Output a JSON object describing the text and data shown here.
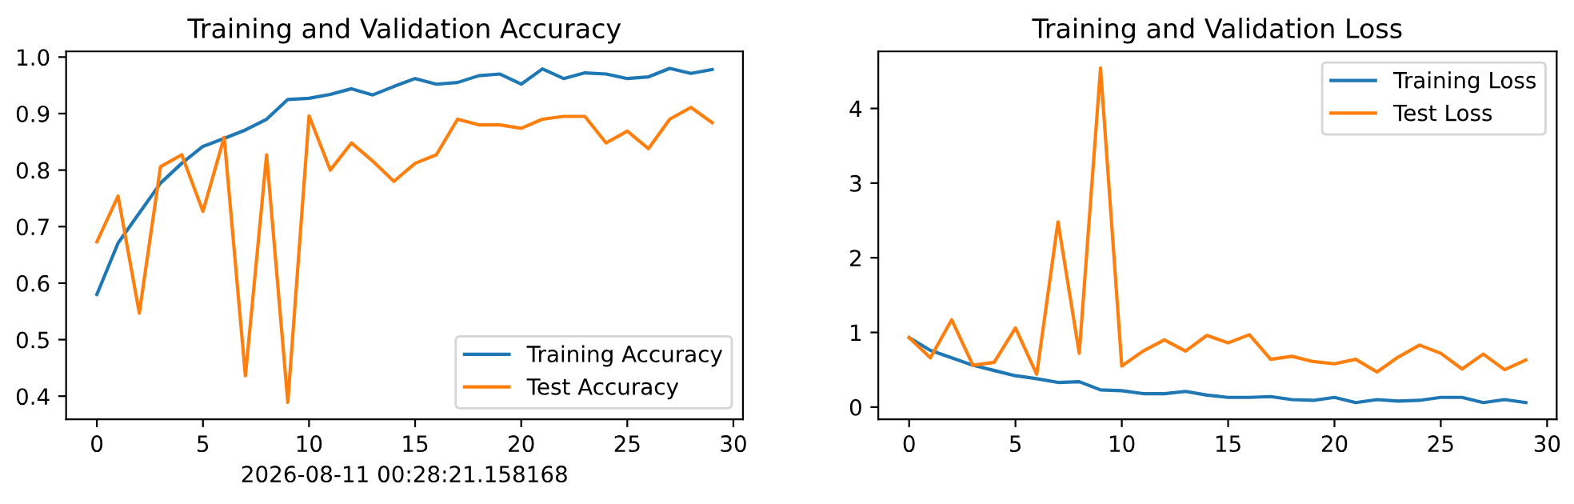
{
  "chart_data": [
    {
      "type": "line",
      "title": "Training and Validation Accuracy",
      "xlabel": "2026-08-11 00:28:21.158168",
      "x": [
        0,
        1,
        2,
        3,
        4,
        5,
        6,
        7,
        8,
        9,
        10,
        11,
        12,
        13,
        14,
        15,
        16,
        17,
        18,
        19,
        20,
        21,
        22,
        23,
        24,
        25,
        26,
        27,
        28,
        29
      ],
      "series": [
        {
          "name": "Training Accuracy",
          "color": "#1f77b4",
          "values": [
            0.58,
            0.671,
            0.724,
            0.777,
            0.812,
            0.842,
            0.856,
            0.871,
            0.89,
            0.925,
            0.927,
            0.934,
            0.944,
            0.933,
            0.948,
            0.962,
            0.952,
            0.955,
            0.967,
            0.97,
            0.952,
            0.979,
            0.962,
            0.972,
            0.97,
            0.962,
            0.965,
            0.98,
            0.971,
            0.978
          ]
        },
        {
          "name": "Test Accuracy",
          "color": "#ff7f0e",
          "values": [
            0.673,
            0.754,
            0.547,
            0.806,
            0.827,
            0.727,
            0.858,
            0.436,
            0.827,
            0.389,
            0.896,
            0.8,
            0.848,
            0.816,
            0.78,
            0.812,
            0.827,
            0.89,
            0.88,
            0.88,
            0.874,
            0.89,
            0.895,
            0.895,
            0.848,
            0.869,
            0.838,
            0.89,
            0.911,
            0.884
          ]
        }
      ],
      "xlim": [
        -1.45,
        30.45
      ],
      "xticks": [
        0,
        5,
        10,
        15,
        20,
        25,
        30
      ],
      "ylim": [
        0.359,
        1.01
      ],
      "yticks": [
        0.4,
        0.5,
        0.6,
        0.7,
        0.8,
        0.9,
        {
          "value": 1.0,
          "label": "1.0"
        }
      ],
      "legend": "bottom right",
      "grid": false,
      "marker": "none",
      "line_style": "solid"
    },
    {
      "type": "line",
      "title": "Training and Validation Loss",
      "x": [
        0,
        1,
        2,
        3,
        4,
        5,
        6,
        7,
        8,
        9,
        10,
        11,
        12,
        13,
        14,
        15,
        16,
        17,
        18,
        19,
        20,
        21,
        22,
        23,
        24,
        25,
        26,
        27,
        28,
        29
      ],
      "series": [
        {
          "name": "Training Loss",
          "color": "#1f77b4",
          "values": [
            0.93,
            0.76,
            0.66,
            0.56,
            0.49,
            0.42,
            0.38,
            0.33,
            0.34,
            0.23,
            0.22,
            0.18,
            0.18,
            0.21,
            0.16,
            0.13,
            0.13,
            0.14,
            0.1,
            0.09,
            0.13,
            0.06,
            0.1,
            0.08,
            0.09,
            0.13,
            0.13,
            0.06,
            0.1,
            0.06
          ]
        },
        {
          "name": "Test Loss",
          "color": "#ff7f0e",
          "values": [
            0.93,
            0.66,
            1.17,
            0.56,
            0.6,
            1.06,
            0.44,
            2.48,
            0.72,
            4.54,
            0.55,
            0.75,
            0.9,
            0.75,
            0.96,
            0.86,
            0.97,
            0.64,
            0.68,
            0.61,
            0.58,
            0.64,
            0.47,
            0.67,
            0.83,
            0.72,
            0.51,
            0.71,
            0.5,
            0.63
          ]
        }
      ],
      "xlim": [
        -1.45,
        30.45
      ],
      "xticks": [
        0,
        5,
        10,
        15,
        20,
        25,
        30
      ],
      "ylim": [
        -0.164,
        4.764
      ],
      "yticks": [
        0,
        1,
        2,
        3,
        4
      ],
      "legend": "top right",
      "grid": false,
      "marker": "none",
      "line_style": "solid"
    }
  ]
}
